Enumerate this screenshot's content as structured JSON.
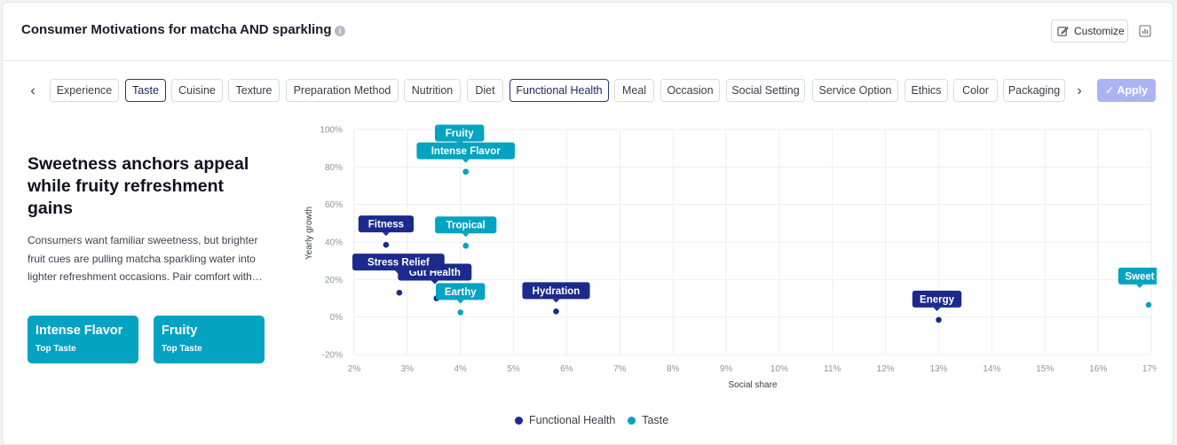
{
  "header": {
    "title": "Consumer Motivations for matcha AND sparkling",
    "info_icon": "info-icon",
    "customize_label": "Customize",
    "chart_toggle_icon": "bar-chart-icon"
  },
  "filters": {
    "prev_icon": "‹",
    "next_icon": "›",
    "chips": [
      {
        "label": "Experience",
        "selected": false
      },
      {
        "label": "Taste",
        "selected": true
      },
      {
        "label": "Cuisine",
        "selected": false
      },
      {
        "label": "Texture",
        "selected": false
      },
      {
        "label": "Preparation Method",
        "selected": false
      },
      {
        "label": "Nutrition",
        "selected": false
      },
      {
        "label": "Diet",
        "selected": false
      },
      {
        "label": "Functional Health",
        "selected": true
      },
      {
        "label": "Meal",
        "selected": false
      },
      {
        "label": "Occasion",
        "selected": false
      },
      {
        "label": "Social Setting",
        "selected": false
      },
      {
        "label": "Service Option",
        "selected": false
      },
      {
        "label": "Ethics",
        "selected": false
      },
      {
        "label": "Color",
        "selected": false
      },
      {
        "label": "Packaging",
        "selected": false
      }
    ],
    "apply_label": "Apply"
  },
  "insight": {
    "headline": "Sweetness anchors appeal while fruity refreshment gains",
    "summary": "Consumers want familiar sweetness, but brighter fruit cues are pulling matcha sparkling water into lighter refreshment occasions. Pair comfort with…",
    "top_cards": [
      {
        "title": "Intense Flavor",
        "subtitle": "Top Taste"
      },
      {
        "title": "Fruity",
        "subtitle": "Top Taste"
      }
    ]
  },
  "colors": {
    "functional_health": "#1b2a8c",
    "taste": "#04a3c1",
    "grid": "#eceef2"
  },
  "chart_data": {
    "type": "scatter",
    "xlabel": "Social share",
    "ylabel": "Yearly growth",
    "xlim": [
      2,
      17
    ],
    "ylim": [
      -20,
      100
    ],
    "x_ticks": [
      "2%",
      "3%",
      "4%",
      "5%",
      "6%",
      "7%",
      "8%",
      "9%",
      "10%",
      "11%",
      "12%",
      "13%",
      "14%",
      "15%",
      "16%",
      "17%"
    ],
    "y_ticks": [
      "100%",
      "80%",
      "60%",
      "40%",
      "20%",
      "0%",
      "-20%"
    ],
    "legend_position": "bottom",
    "series": [
      {
        "name": "Functional Health",
        "points": [
          {
            "label": "Fitness",
            "x": 2.6,
            "y": 38.5
          },
          {
            "label": "Stress Relief",
            "x": 2.85,
            "y": 13
          },
          {
            "label": "Gut Health",
            "x": 3.55,
            "y": 10
          },
          {
            "label": "Hydration",
            "x": 5.8,
            "y": 3
          },
          {
            "label": "Energy",
            "x": 13,
            "y": -1.5
          }
        ]
      },
      {
        "name": "Taste",
        "points": [
          {
            "label": "Fruity",
            "x": 4.1,
            "y": 77.5
          },
          {
            "label": "Intense Flavor",
            "x": 4.1,
            "y": 77.5
          },
          {
            "label": "Tropical",
            "x": 4.1,
            "y": 38
          },
          {
            "label": "Earthy",
            "x": 4.0,
            "y": 2.5
          },
          {
            "label": "Sweet",
            "x": 16.95,
            "y": 6.5
          }
        ]
      }
    ]
  }
}
